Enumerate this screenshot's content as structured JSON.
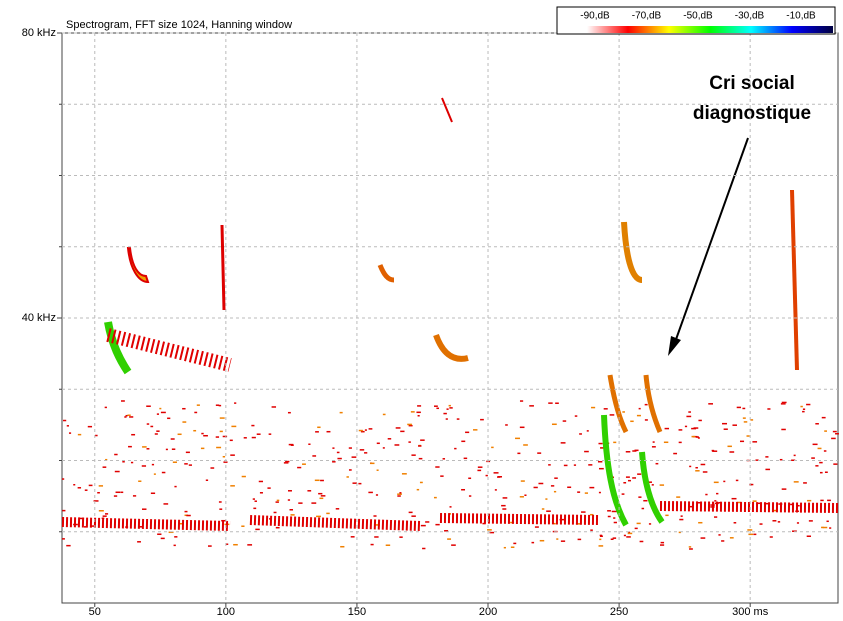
{
  "chart_data": {
    "type": "spectrogram",
    "title": "Spectrogram, FFT size 1024, Hanning window",
    "xlim": [
      37.5,
      333.5
    ],
    "xticks": [
      50,
      100,
      150,
      200,
      250,
      {
        "value": 300,
        "label": "300 ms"
      }
    ],
    "ylim": [
      0,
      80
    ],
    "yticks": [
      {
        "value": 40,
        "label": "40 kHz"
      },
      {
        "value": 80,
        "label": "80 kHz"
      }
    ],
    "yminor_ticks": [
      10,
      20,
      30,
      50,
      60,
      70
    ],
    "grid": true,
    "colorbar": {
      "ticks": [
        {
          "value": -90,
          "label": "-90,dB"
        },
        {
          "value": -70,
          "label": "-70,dB"
        },
        {
          "value": -50,
          "label": "-50,dB"
        },
        {
          "value": -30,
          "label": "-30,dB"
        },
        {
          "value": -10,
          "label": "-10,dB"
        }
      ],
      "colors": [
        "#ffffff",
        "#ff0000",
        "#ffff00",
        "#00ff00",
        "#00ffff",
        "#0000ff",
        "#000040"
      ]
    },
    "annotation": {
      "lines": [
        "Cri social",
        "diagnostique"
      ]
    }
  }
}
